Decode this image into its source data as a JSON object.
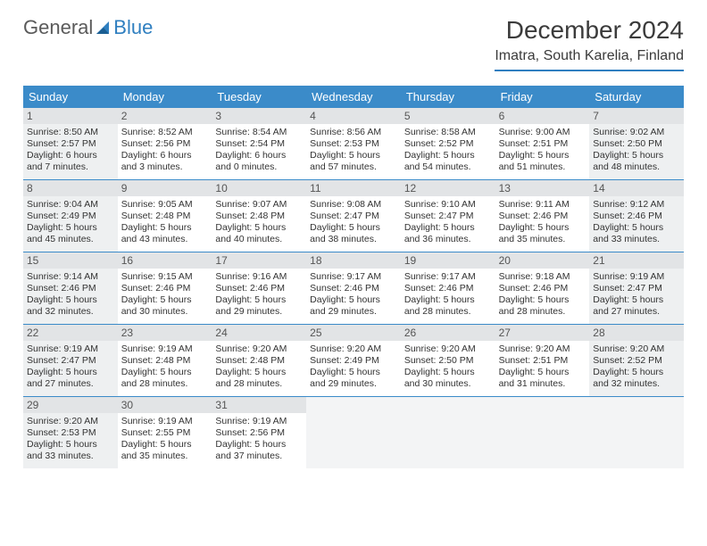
{
  "logo": {
    "text1": "General",
    "text2": "Blue"
  },
  "title": "December 2024",
  "location": "Imatra, South Karelia, Finland",
  "styling": {
    "header_bg": "#3b8bc9",
    "header_fg": "#ffffff",
    "border_color": "#2f7fc0",
    "shaded_bg": "#eef0f1",
    "daynum_bg": "#e2e4e6",
    "page_bg": "#ffffff",
    "text_color": "#333333",
    "title_fontsize": 28,
    "location_fontsize": 16,
    "dayname_fontsize": 13,
    "cell_fontsize": 10.5
  },
  "day_names": [
    "Sunday",
    "Monday",
    "Tuesday",
    "Wednesday",
    "Thursday",
    "Friday",
    "Saturday"
  ],
  "weeks": [
    [
      {
        "num": "1",
        "sunrise": "Sunrise: 8:50 AM",
        "sunset": "Sunset: 2:57 PM",
        "day1": "Daylight: 6 hours",
        "day2": "and 7 minutes.",
        "shaded": true
      },
      {
        "num": "2",
        "sunrise": "Sunrise: 8:52 AM",
        "sunset": "Sunset: 2:56 PM",
        "day1": "Daylight: 6 hours",
        "day2": "and 3 minutes."
      },
      {
        "num": "3",
        "sunrise": "Sunrise: 8:54 AM",
        "sunset": "Sunset: 2:54 PM",
        "day1": "Daylight: 6 hours",
        "day2": "and 0 minutes."
      },
      {
        "num": "4",
        "sunrise": "Sunrise: 8:56 AM",
        "sunset": "Sunset: 2:53 PM",
        "day1": "Daylight: 5 hours",
        "day2": "and 57 minutes."
      },
      {
        "num": "5",
        "sunrise": "Sunrise: 8:58 AM",
        "sunset": "Sunset: 2:52 PM",
        "day1": "Daylight: 5 hours",
        "day2": "and 54 minutes."
      },
      {
        "num": "6",
        "sunrise": "Sunrise: 9:00 AM",
        "sunset": "Sunset: 2:51 PM",
        "day1": "Daylight: 5 hours",
        "day2": "and 51 minutes."
      },
      {
        "num": "7",
        "sunrise": "Sunrise: 9:02 AM",
        "sunset": "Sunset: 2:50 PM",
        "day1": "Daylight: 5 hours",
        "day2": "and 48 minutes.",
        "shaded": true
      }
    ],
    [
      {
        "num": "8",
        "sunrise": "Sunrise: 9:04 AM",
        "sunset": "Sunset: 2:49 PM",
        "day1": "Daylight: 5 hours",
        "day2": "and 45 minutes.",
        "shaded": true
      },
      {
        "num": "9",
        "sunrise": "Sunrise: 9:05 AM",
        "sunset": "Sunset: 2:48 PM",
        "day1": "Daylight: 5 hours",
        "day2": "and 43 minutes."
      },
      {
        "num": "10",
        "sunrise": "Sunrise: 9:07 AM",
        "sunset": "Sunset: 2:48 PM",
        "day1": "Daylight: 5 hours",
        "day2": "and 40 minutes."
      },
      {
        "num": "11",
        "sunrise": "Sunrise: 9:08 AM",
        "sunset": "Sunset: 2:47 PM",
        "day1": "Daylight: 5 hours",
        "day2": "and 38 minutes."
      },
      {
        "num": "12",
        "sunrise": "Sunrise: 9:10 AM",
        "sunset": "Sunset: 2:47 PM",
        "day1": "Daylight: 5 hours",
        "day2": "and 36 minutes."
      },
      {
        "num": "13",
        "sunrise": "Sunrise: 9:11 AM",
        "sunset": "Sunset: 2:46 PM",
        "day1": "Daylight: 5 hours",
        "day2": "and 35 minutes."
      },
      {
        "num": "14",
        "sunrise": "Sunrise: 9:12 AM",
        "sunset": "Sunset: 2:46 PM",
        "day1": "Daylight: 5 hours",
        "day2": "and 33 minutes.",
        "shaded": true
      }
    ],
    [
      {
        "num": "15",
        "sunrise": "Sunrise: 9:14 AM",
        "sunset": "Sunset: 2:46 PM",
        "day1": "Daylight: 5 hours",
        "day2": "and 32 minutes.",
        "shaded": true
      },
      {
        "num": "16",
        "sunrise": "Sunrise: 9:15 AM",
        "sunset": "Sunset: 2:46 PM",
        "day1": "Daylight: 5 hours",
        "day2": "and 30 minutes."
      },
      {
        "num": "17",
        "sunrise": "Sunrise: 9:16 AM",
        "sunset": "Sunset: 2:46 PM",
        "day1": "Daylight: 5 hours",
        "day2": "and 29 minutes."
      },
      {
        "num": "18",
        "sunrise": "Sunrise: 9:17 AM",
        "sunset": "Sunset: 2:46 PM",
        "day1": "Daylight: 5 hours",
        "day2": "and 29 minutes."
      },
      {
        "num": "19",
        "sunrise": "Sunrise: 9:17 AM",
        "sunset": "Sunset: 2:46 PM",
        "day1": "Daylight: 5 hours",
        "day2": "and 28 minutes."
      },
      {
        "num": "20",
        "sunrise": "Sunrise: 9:18 AM",
        "sunset": "Sunset: 2:46 PM",
        "day1": "Daylight: 5 hours",
        "day2": "and 28 minutes."
      },
      {
        "num": "21",
        "sunrise": "Sunrise: 9:19 AM",
        "sunset": "Sunset: 2:47 PM",
        "day1": "Daylight: 5 hours",
        "day2": "and 27 minutes.",
        "shaded": true
      }
    ],
    [
      {
        "num": "22",
        "sunrise": "Sunrise: 9:19 AM",
        "sunset": "Sunset: 2:47 PM",
        "day1": "Daylight: 5 hours",
        "day2": "and 27 minutes.",
        "shaded": true
      },
      {
        "num": "23",
        "sunrise": "Sunrise: 9:19 AM",
        "sunset": "Sunset: 2:48 PM",
        "day1": "Daylight: 5 hours",
        "day2": "and 28 minutes."
      },
      {
        "num": "24",
        "sunrise": "Sunrise: 9:20 AM",
        "sunset": "Sunset: 2:48 PM",
        "day1": "Daylight: 5 hours",
        "day2": "and 28 minutes."
      },
      {
        "num": "25",
        "sunrise": "Sunrise: 9:20 AM",
        "sunset": "Sunset: 2:49 PM",
        "day1": "Daylight: 5 hours",
        "day2": "and 29 minutes."
      },
      {
        "num": "26",
        "sunrise": "Sunrise: 9:20 AM",
        "sunset": "Sunset: 2:50 PM",
        "day1": "Daylight: 5 hours",
        "day2": "and 30 minutes."
      },
      {
        "num": "27",
        "sunrise": "Sunrise: 9:20 AM",
        "sunset": "Sunset: 2:51 PM",
        "day1": "Daylight: 5 hours",
        "day2": "and 31 minutes."
      },
      {
        "num": "28",
        "sunrise": "Sunrise: 9:20 AM",
        "sunset": "Sunset: 2:52 PM",
        "day1": "Daylight: 5 hours",
        "day2": "and 32 minutes.",
        "shaded": true
      }
    ],
    [
      {
        "num": "29",
        "sunrise": "Sunrise: 9:20 AM",
        "sunset": "Sunset: 2:53 PM",
        "day1": "Daylight: 5 hours",
        "day2": "and 33 minutes.",
        "shaded": true
      },
      {
        "num": "30",
        "sunrise": "Sunrise: 9:19 AM",
        "sunset": "Sunset: 2:55 PM",
        "day1": "Daylight: 5 hours",
        "day2": "and 35 minutes."
      },
      {
        "num": "31",
        "sunrise": "Sunrise: 9:19 AM",
        "sunset": "Sunset: 2:56 PM",
        "day1": "Daylight: 5 hours",
        "day2": "and 37 minutes."
      },
      {
        "empty": true
      },
      {
        "empty": true
      },
      {
        "empty": true
      },
      {
        "empty": true
      }
    ]
  ]
}
